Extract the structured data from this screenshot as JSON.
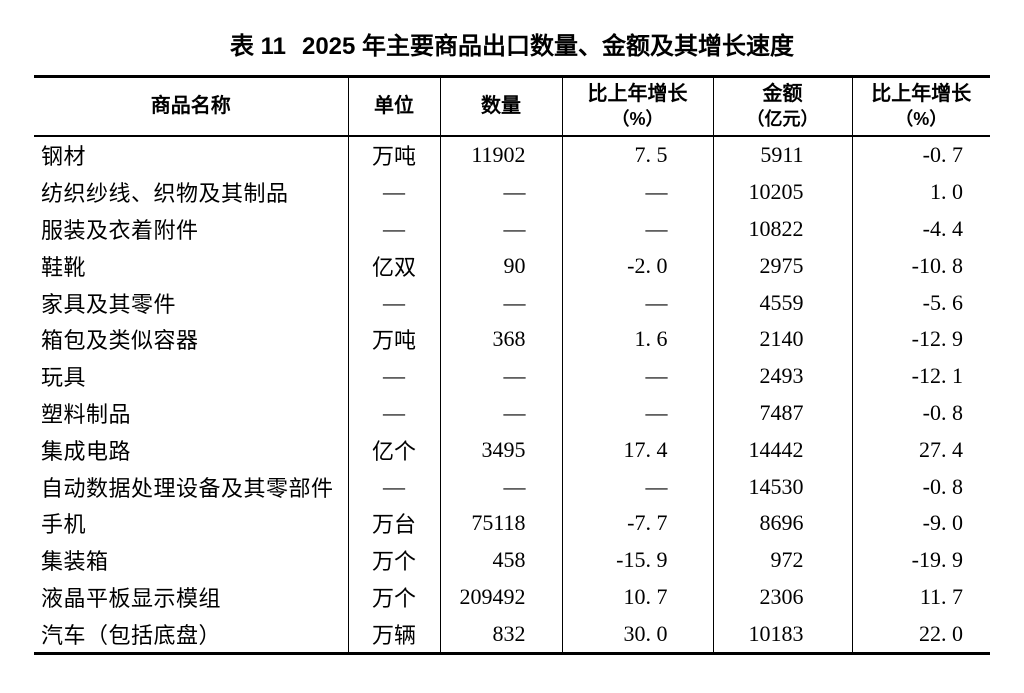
{
  "colors": {
    "text": "#000000",
    "background": "#ffffff",
    "border": "#000000"
  },
  "caption": {
    "prefix": "表 11",
    "title": "2025 年主要商品出口数量、金额及其增长速度"
  },
  "table": {
    "columns": [
      {
        "label": "商品名称",
        "sub": ""
      },
      {
        "label": "单位",
        "sub": ""
      },
      {
        "label": "数量",
        "sub": ""
      },
      {
        "label": "比上年增长",
        "sub": "（%）"
      },
      {
        "label": "金额",
        "sub": "（亿元）"
      },
      {
        "label": "比上年增长",
        "sub": "（%）"
      }
    ],
    "empty_marker": "—",
    "rows": [
      [
        "钢材",
        "万吨",
        "11902",
        "7.5",
        "5911",
        "-0.7"
      ],
      [
        "纺织纱线、织物及其制品",
        "—",
        "—",
        "—",
        "10205",
        "1.0"
      ],
      [
        "服装及衣着附件",
        "—",
        "—",
        "—",
        "10822",
        "-4.4"
      ],
      [
        "鞋靴",
        "亿双",
        "90",
        "-2.0",
        "2975",
        "-10.8"
      ],
      [
        "家具及其零件",
        "—",
        "—",
        "—",
        "4559",
        "-5.6"
      ],
      [
        "箱包及类似容器",
        "万吨",
        "368",
        "1.6",
        "2140",
        "-12.9"
      ],
      [
        "玩具",
        "—",
        "—",
        "—",
        "2493",
        "-12.1"
      ],
      [
        "塑料制品",
        "—",
        "—",
        "—",
        "7487",
        "-0.8"
      ],
      [
        "集成电路",
        "亿个",
        "3495",
        "17.4",
        "14442",
        "27.4"
      ],
      [
        "自动数据处理设备及其零部件",
        "—",
        "—",
        "—",
        "14530",
        "-0.8"
      ],
      [
        "手机",
        "万台",
        "75118",
        "-7.7",
        "8696",
        "-9.0"
      ],
      [
        "集装箱",
        "万个",
        "458",
        "-15.9",
        "972",
        "-19.9"
      ],
      [
        "液晶平板显示模组",
        "万个",
        "209492",
        "10.7",
        "2306",
        "11.7"
      ],
      [
        "汽车（包括底盘）",
        "万辆",
        "832",
        "30.0",
        "10183",
        "22.0"
      ]
    ]
  }
}
